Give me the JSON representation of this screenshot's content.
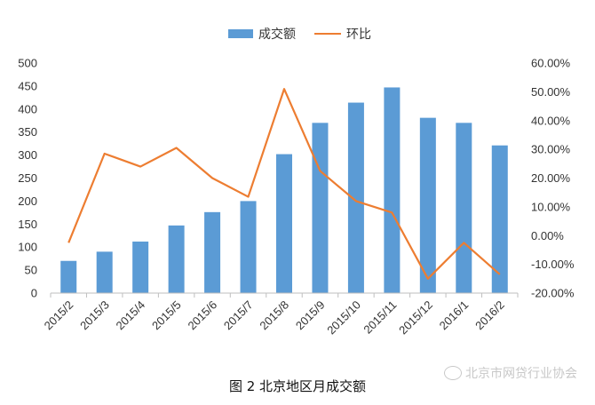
{
  "chart_data": {
    "type": "bar+line",
    "categories": [
      "2015/2",
      "2015/3",
      "2015/4",
      "2015/5",
      "2015/6",
      "2015/7",
      "2015/8",
      "2015/9",
      "2015/10",
      "2015/11",
      "2015/12",
      "2016/1",
      "2016/2"
    ],
    "series": [
      {
        "name": "成交额",
        "type": "bar",
        "axis": "left",
        "values": [
          70,
          90,
          112,
          147,
          176,
          200,
          302,
          370,
          414,
          447,
          381,
          370,
          321
        ]
      },
      {
        "name": "环比",
        "type": "line",
        "axis": "right",
        "values": [
          -2.5,
          28.5,
          24.0,
          30.5,
          20.0,
          13.5,
          51.0,
          22.5,
          12.0,
          8.0,
          -15.0,
          -2.5,
          -13.5
        ]
      }
    ],
    "yleft": {
      "range": [
        0,
        500
      ],
      "ticks": [
        "0",
        "50",
        "100",
        "150",
        "200",
        "250",
        "300",
        "350",
        "400",
        "450",
        "500"
      ]
    },
    "yright": {
      "range": [
        -20,
        60
      ],
      "ticks": [
        "-20.00%",
        "-10.00%",
        "0.00%",
        "10.00%",
        "20.00%",
        "30.00%",
        "40.00%",
        "50.00%",
        "60.00%"
      ]
    },
    "legend_position": "top-center",
    "grid": false,
    "colors": {
      "bar": "#5b9bd5",
      "line": "#ed7d31"
    }
  },
  "caption": "图 2 北京地区月成交额",
  "watermark": "北京市网贷行业协会"
}
